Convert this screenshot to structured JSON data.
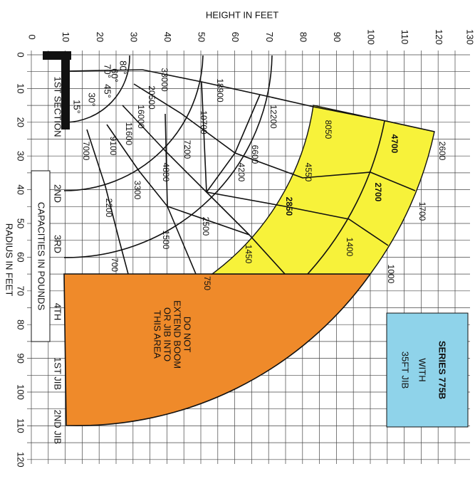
{
  "axes": {
    "height_title": "HEIGHT IN FEET",
    "radius_title": "RADIUS IN FEET",
    "height_ticks": [
      "0",
      "10",
      "20",
      "30",
      "40",
      "50",
      "60",
      "70",
      "80",
      "90",
      "100",
      "110",
      "120",
      "130"
    ],
    "radius_ticks": [
      "0",
      "10",
      "20",
      "30",
      "40",
      "50",
      "60",
      "70",
      "80",
      "90",
      "100",
      "110",
      "120"
    ]
  },
  "sections": {
    "first": "1ST SECTION",
    "second": "2ND",
    "third": "3RD",
    "fourth": "4TH",
    "jib1": "1ST JIB",
    "jib2": "2ND JIB",
    "caption": "CAPACITIES IN POUNDS"
  },
  "angles": [
    "80°",
    "70°",
    "60°",
    "45°",
    "30°",
    "15°"
  ],
  "capacities": [
    "33000",
    "20500",
    "16000",
    "11600",
    "9100",
    "7000",
    "18900",
    "10700",
    "7200",
    "4800",
    "3300",
    "2200",
    "700",
    "1500",
    "2500",
    "4200",
    "6600",
    "12200",
    "8050",
    "4550",
    "2850",
    "1450",
    "750",
    "4700",
    "2700",
    "1400",
    "1000",
    "1700",
    "2600"
  ],
  "warning": [
    "DO NOT",
    "EXTEND BOOM",
    "OR JIB INTO",
    "THIS AREA"
  ],
  "series_box": {
    "title": "SERIES 775B",
    "line2": "WITH",
    "line3": "35FT JIB"
  }
}
